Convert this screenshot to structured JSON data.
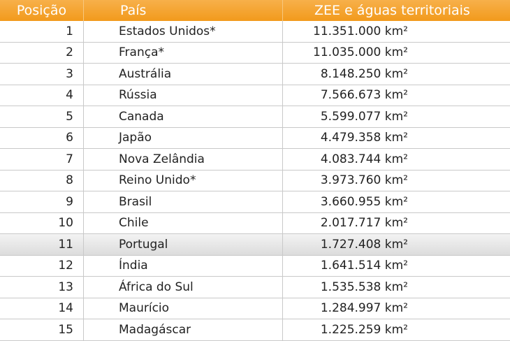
{
  "headers": [
    "Posição",
    "País",
    "ZEE e águas territoriais"
  ],
  "rows": [
    {
      "pos": "1",
      "country": "Estados Unidos*",
      "area": "11.351.000 km²"
    },
    {
      "pos": "2",
      "country": "França*",
      "area": "11.035.000 km²"
    },
    {
      "pos": "3",
      "country": "Austrália",
      "area": "8.148.250 km²"
    },
    {
      "pos": "4",
      "country": "Rússia",
      "area": "7.566.673 km²"
    },
    {
      "pos": "5",
      "country": "Canada",
      "area": "5.599.077 km²"
    },
    {
      "pos": "6",
      "country": "Japão",
      "area": "4.479.358 km²"
    },
    {
      "pos": "7",
      "country": "Nova Zelândia",
      "area": "4.083.744 km²"
    },
    {
      "pos": "8",
      "country": "Reino Unido*",
      "area": "3.973.760 km²"
    },
    {
      "pos": "9",
      "country": "Brasil",
      "area": "3.660.955 km²"
    },
    {
      "pos": "10",
      "country": "Chile",
      "area": "2.017.717 km²"
    },
    {
      "pos": "11",
      "country": "Portugal",
      "area": "1.727.408 km²"
    },
    {
      "pos": "12",
      "country": "Índia",
      "area": "1.641.514 km²"
    },
    {
      "pos": "13",
      "country": "África do Sul",
      "area": "1.535.538 km²"
    },
    {
      "pos": "14",
      "country": "Maurício",
      "area": "1.284.997 km²"
    },
    {
      "pos": "15",
      "country": "Madagáscar",
      "area": "1.225.259 km²"
    }
  ],
  "colors": {
    "header": "#f29a1c",
    "highlight_row": "#dcdcdc"
  }
}
